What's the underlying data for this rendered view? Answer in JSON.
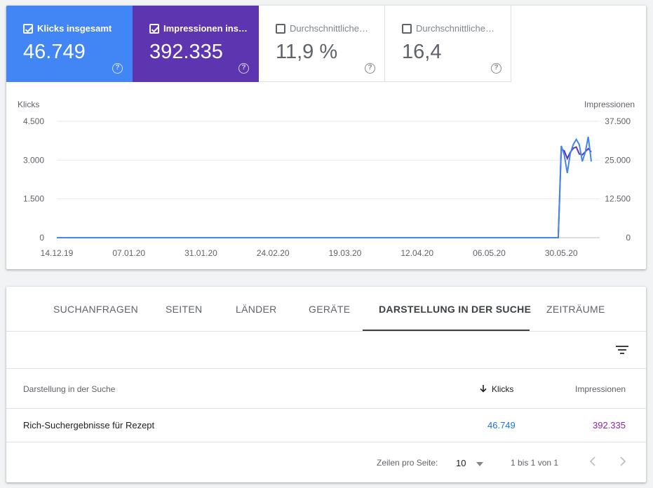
{
  "metrics": [
    {
      "label": "Klicks insgesamt",
      "value": "46.749",
      "checked": true,
      "color": "#4285f4"
    },
    {
      "label": "Impressionen ins…",
      "value": "392.335",
      "checked": true,
      "color": "#5e35b1"
    },
    {
      "label": "Durchschnittliche…",
      "value": "11,9 %",
      "checked": false
    },
    {
      "label": "Durchschnittliche…",
      "value": "16,4",
      "checked": false
    }
  ],
  "chart_data": {
    "type": "line",
    "ylabel_left": "Klicks",
    "ylabel_right": "Impressionen",
    "yticks_left": [
      "4.500",
      "3.000",
      "1.500",
      "0"
    ],
    "yticks_right": [
      "37.500",
      "25.000",
      "12.500",
      "0"
    ],
    "ylim_left": [
      0,
      4500
    ],
    "ylim_right": [
      0,
      37500
    ],
    "xticks": [
      "14.12.19",
      "07.01.20",
      "31.01.20",
      "24.02.20",
      "19.03.20",
      "12.04.20",
      "06.05.20",
      "30.05.20"
    ],
    "x_range": [
      "2019-12-14",
      "2020-06-09"
    ],
    "grid": true,
    "series": [
      {
        "color": "#4285f4",
        "axis": "left",
        "x": [
          "2019-12-14",
          "2020-05-29",
          "2020-05-30",
          "2020-05-31",
          "2020-06-01",
          "2020-06-02",
          "2020-06-03",
          "2020-06-04",
          "2020-06-05",
          "2020-06-06",
          "2020-06-07",
          "2020-06-08",
          "2020-06-09"
        ],
        "values": [
          0,
          0,
          3550,
          3200,
          2500,
          3250,
          3600,
          3800,
          3600,
          2950,
          3300,
          3900,
          2950
        ]
      },
      {
        "color": "#5e35b1",
        "axis": "right",
        "x": [
          "2019-12-14",
          "2020-05-29",
          "2020-05-30",
          "2020-05-31",
          "2020-06-01",
          "2020-06-02",
          "2020-06-03",
          "2020-06-04",
          "2020-06-05",
          "2020-06-06",
          "2020-06-07",
          "2020-06-08",
          "2020-06-09"
        ],
        "values": [
          0,
          0,
          28500,
          28000,
          25500,
          27500,
          28800,
          29200,
          27000,
          26700,
          27700,
          28700,
          27600
        ]
      }
    ]
  },
  "tabs": [
    {
      "label": "SUCHANFRAGEN",
      "active": false
    },
    {
      "label": "SEITEN",
      "active": false
    },
    {
      "label": "LÄNDER",
      "active": false
    },
    {
      "label": "GERÄTE",
      "active": false
    },
    {
      "label": "DARSTELLUNG IN DER SUCHE",
      "active": true
    },
    {
      "label": "ZEITRÄUME",
      "active": false
    }
  ],
  "table": {
    "headers": {
      "dimension": "Darstellung in der Suche",
      "clicks": "Klicks",
      "impressions": "Impressionen"
    },
    "rows": [
      {
        "dimension": "Rich-Suchergebnisse für Rezept",
        "clicks": "46.749",
        "impressions": "392.335"
      }
    ]
  },
  "pager": {
    "rows_label": "Zeilen pro Seite:",
    "rows_value": "10",
    "range": "1 bis 1 von 1"
  }
}
